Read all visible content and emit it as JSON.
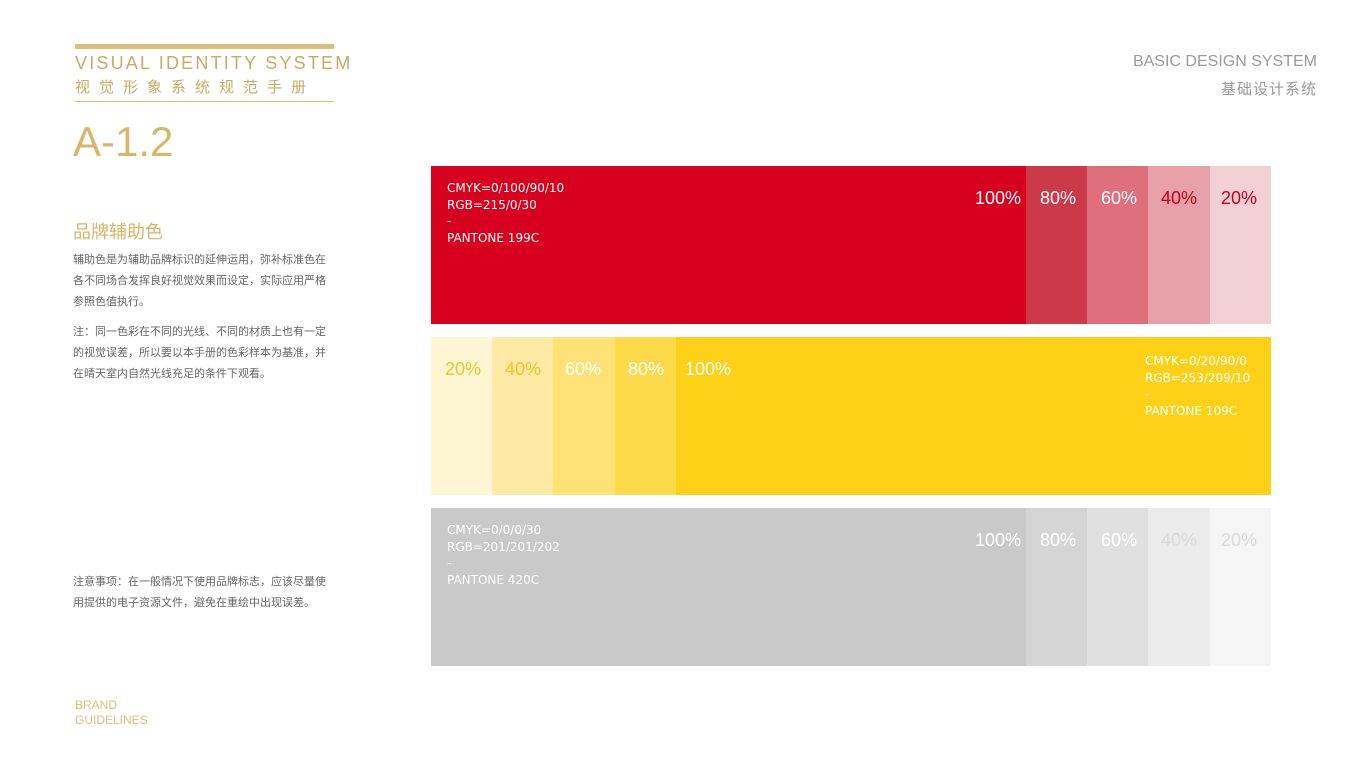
{
  "header": {
    "title_en": "VISUAL IDENTITY SYSTEM",
    "title_cn": "视觉形象系统规范手册",
    "code": "A-1.2",
    "section_en": "BASIC DESIGN SYSTEM",
    "section_cn": "基础设计系统"
  },
  "content": {
    "title": "品牌辅助色",
    "para1": "辅助色是为辅助品牌标识的延伸运用，弥补标准色在各不同场合发挥良好视觉效果而设定，实际应用严格参照色值执行。",
    "para2": "注：同一色彩在不同的光线、不同的材质上也有一定的视觉误差，所以要以本手册的色彩样本为基准，并在晴天室内自然光线充足的条件下观看。",
    "para3": "注意事项：在一般情况下使用品牌标志，应该尽量使用提供的电子资源文件，避免在重绘中出现误差。"
  },
  "footer": {
    "line1": "BRAND",
    "line2": "GUIDELINES"
  },
  "swatches": {
    "red": {
      "cmyk": "CMYK=0/100/90/10",
      "rgb": "RGB=215/0/30",
      "dash": "-",
      "pantone": "PANTONE 199C",
      "tints": [
        "100%",
        "80%",
        "60%",
        "40%",
        "20%"
      ],
      "colors": [
        "#d7001e",
        "#cc3a4a",
        "#df6f7c",
        "#e8a1a8",
        "#f3d0d4"
      ],
      "label_colors": [
        "#ffffff",
        "#ffffff",
        "#ffffff",
        "#c8001c",
        "#c8001c"
      ]
    },
    "yellow": {
      "cmyk": "CMYK=0/20/90/0",
      "rgb": "RGB=253/209/10",
      "dash": "-",
      "pantone": "PANTONE 109C",
      "tints": [
        "20%",
        "40%",
        "60%",
        "80%",
        "100%"
      ],
      "colors": [
        "#fef5d3",
        "#feeaa4",
        "#fee276",
        "#fdda49",
        "#fcd117"
      ],
      "label_colors": [
        "#f4c426",
        "#f4c426",
        "#ffffff",
        "#ffffff",
        "#ffffff"
      ]
    },
    "grey": {
      "cmyk": "CMYK=0/0/0/30",
      "rgb": "RGB=201/201/202",
      "dash": "-",
      "pantone": "PANTONE 420C",
      "tints": [
        "100%",
        "80%",
        "60%",
        "40%",
        "20%"
      ],
      "colors": [
        "#c9c9ca",
        "#d5d5d6",
        "#e0e0e1",
        "#ebebeb",
        "#f5f5f5"
      ],
      "label_colors": [
        "#ffffff",
        "#ffffff",
        "#ffffff",
        "#dadada",
        "#dadada"
      ]
    }
  }
}
